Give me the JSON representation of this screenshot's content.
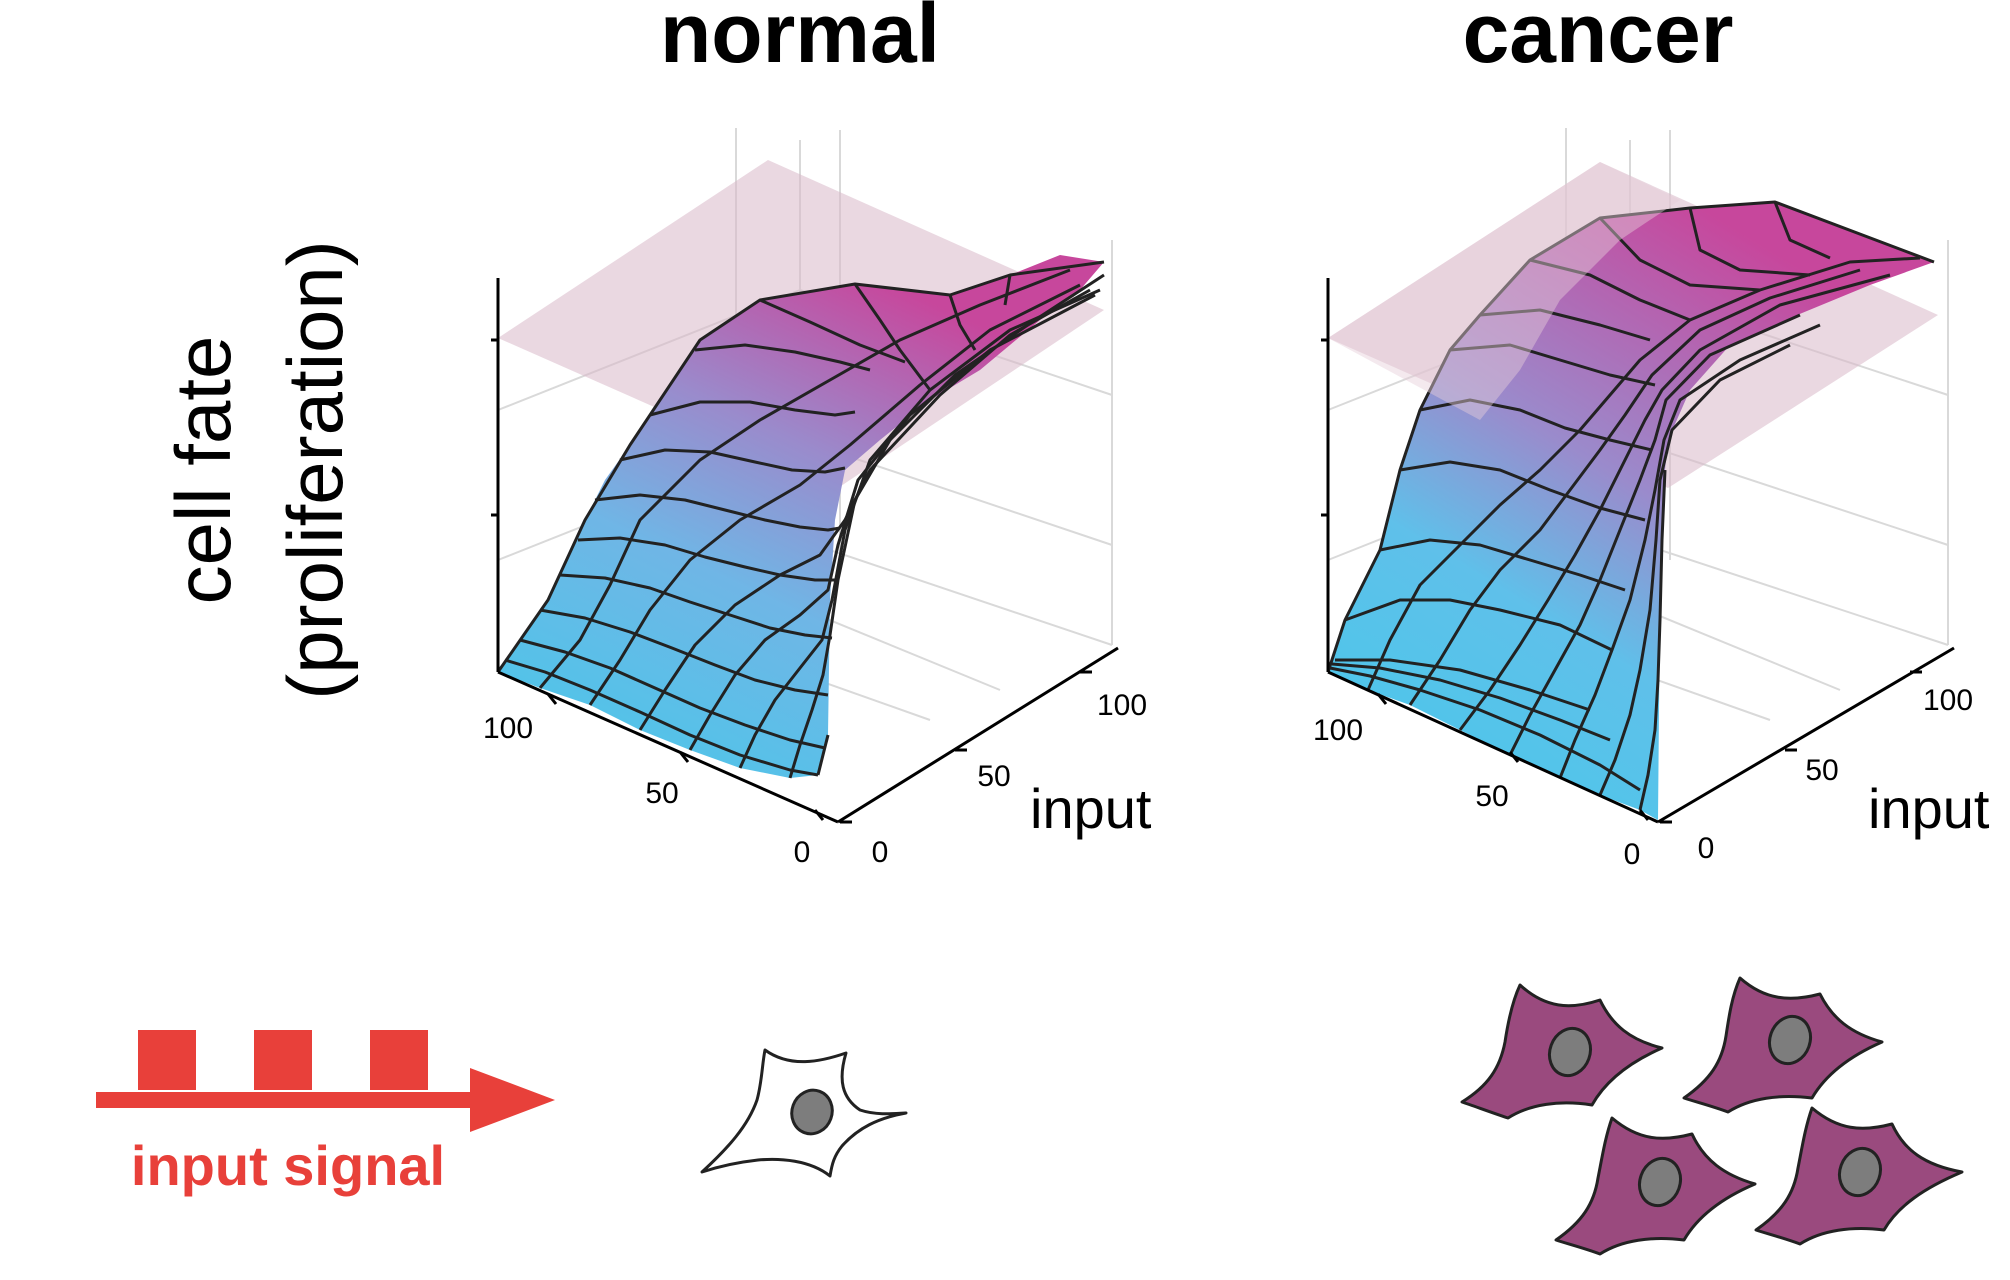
{
  "panels": {
    "normal": {
      "title": "normal",
      "ticks_left": [
        "100",
        "50",
        "0"
      ],
      "ticks_right": [
        "0",
        "50",
        "100"
      ],
      "axis_label": "input"
    },
    "cancer": {
      "title": "cancer",
      "ticks_left": [
        "100",
        "50",
        "0"
      ],
      "ticks_right": [
        "0",
        "50",
        "100"
      ],
      "axis_label": "input"
    }
  },
  "y_label": {
    "line1": "cell fate",
    "line2": "(proliferation)"
  },
  "signal": {
    "label": "input signal",
    "pulses": 3
  },
  "cells": {
    "normal_count": 1,
    "cancer_count": 4
  },
  "colors": {
    "surface_low": "#45c9ea",
    "surface_mid": "#8f8fcf",
    "surface_high": "#c7479c",
    "threshold_plane": "#d9b8c8",
    "signal": "#e8403a",
    "cancer_cell": "#9a4a7e",
    "normal_cell": "#ffffff",
    "nucleus": "#7d7d7d"
  }
}
